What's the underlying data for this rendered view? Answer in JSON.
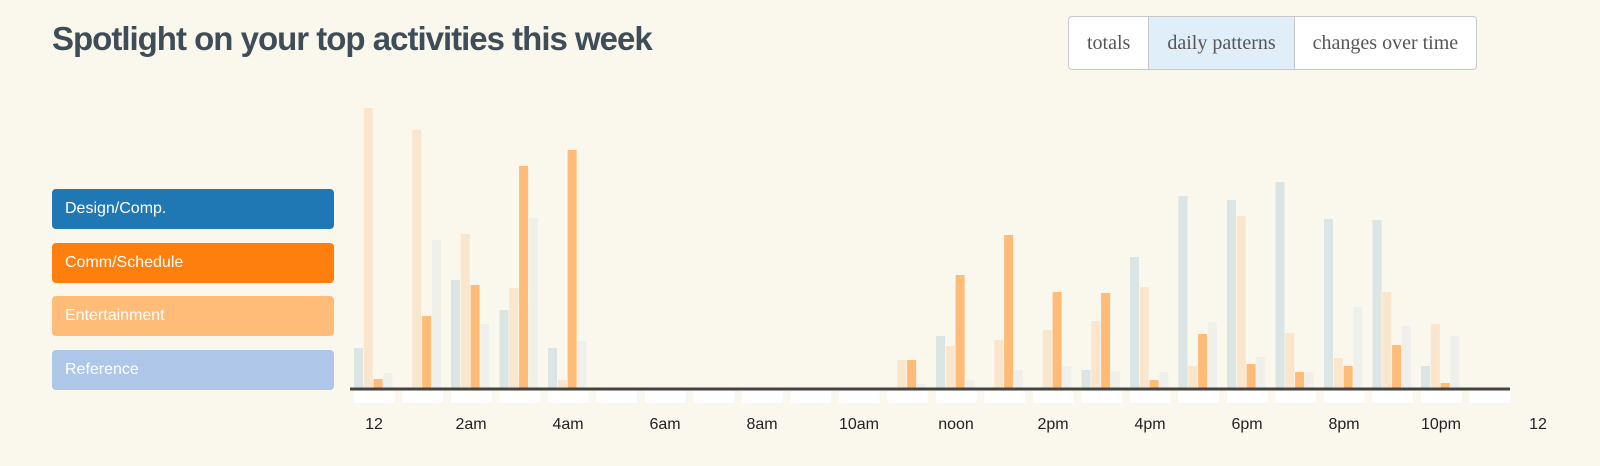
{
  "header": {
    "title": "Spotlight on your top activities this week"
  },
  "tabs": [
    {
      "label": "totals"
    },
    {
      "label": "daily patterns",
      "active": true
    },
    {
      "label": "changes over time"
    }
  ],
  "chart_data": {
    "type": "bar",
    "highlighted": "Entertainment",
    "xticks": [
      "12",
      "2am",
      "4am",
      "6am",
      "8am",
      "10am",
      "noon",
      "2pm",
      "4pm",
      "6pm",
      "8pm",
      "10pm",
      "12"
    ],
    "series": [
      {
        "name": "Design/Comp.",
        "color": "#1f77b4",
        "values": [
          40,
          0,
          108,
          78,
          40,
          0,
          0,
          0,
          0,
          0,
          0,
          0,
          52,
          0,
          0,
          18,
          131,
          192,
          188,
          206,
          169,
          168,
          22,
          0
        ]
      },
      {
        "name": "Comm/Schedule",
        "color": "#ff7f0e",
        "values": [
          280,
          258,
          154,
          100,
          8,
          0,
          0,
          0,
          0,
          0,
          0,
          28,
          42,
          48,
          58,
          67,
          101,
          22,
          172,
          55,
          30,
          96,
          64,
          0
        ]
      },
      {
        "name": "Entertainment",
        "color": "#ffbb78",
        "values": [
          9,
          72,
          103,
          222,
          238,
          0,
          0,
          0,
          0,
          0,
          0,
          28,
          113,
          153,
          96,
          95,
          8,
          54,
          24,
          16,
          22,
          43,
          5,
          0
        ]
      },
      {
        "name": "Reference",
        "color": "#aec7e8",
        "values": [
          15,
          148,
          64,
          170,
          47,
          0,
          0,
          0,
          0,
          0,
          0,
          4,
          8,
          18,
          22,
          17,
          16,
          66,
          31,
          16,
          81,
          62,
          52,
          0
        ]
      }
    ]
  }
}
